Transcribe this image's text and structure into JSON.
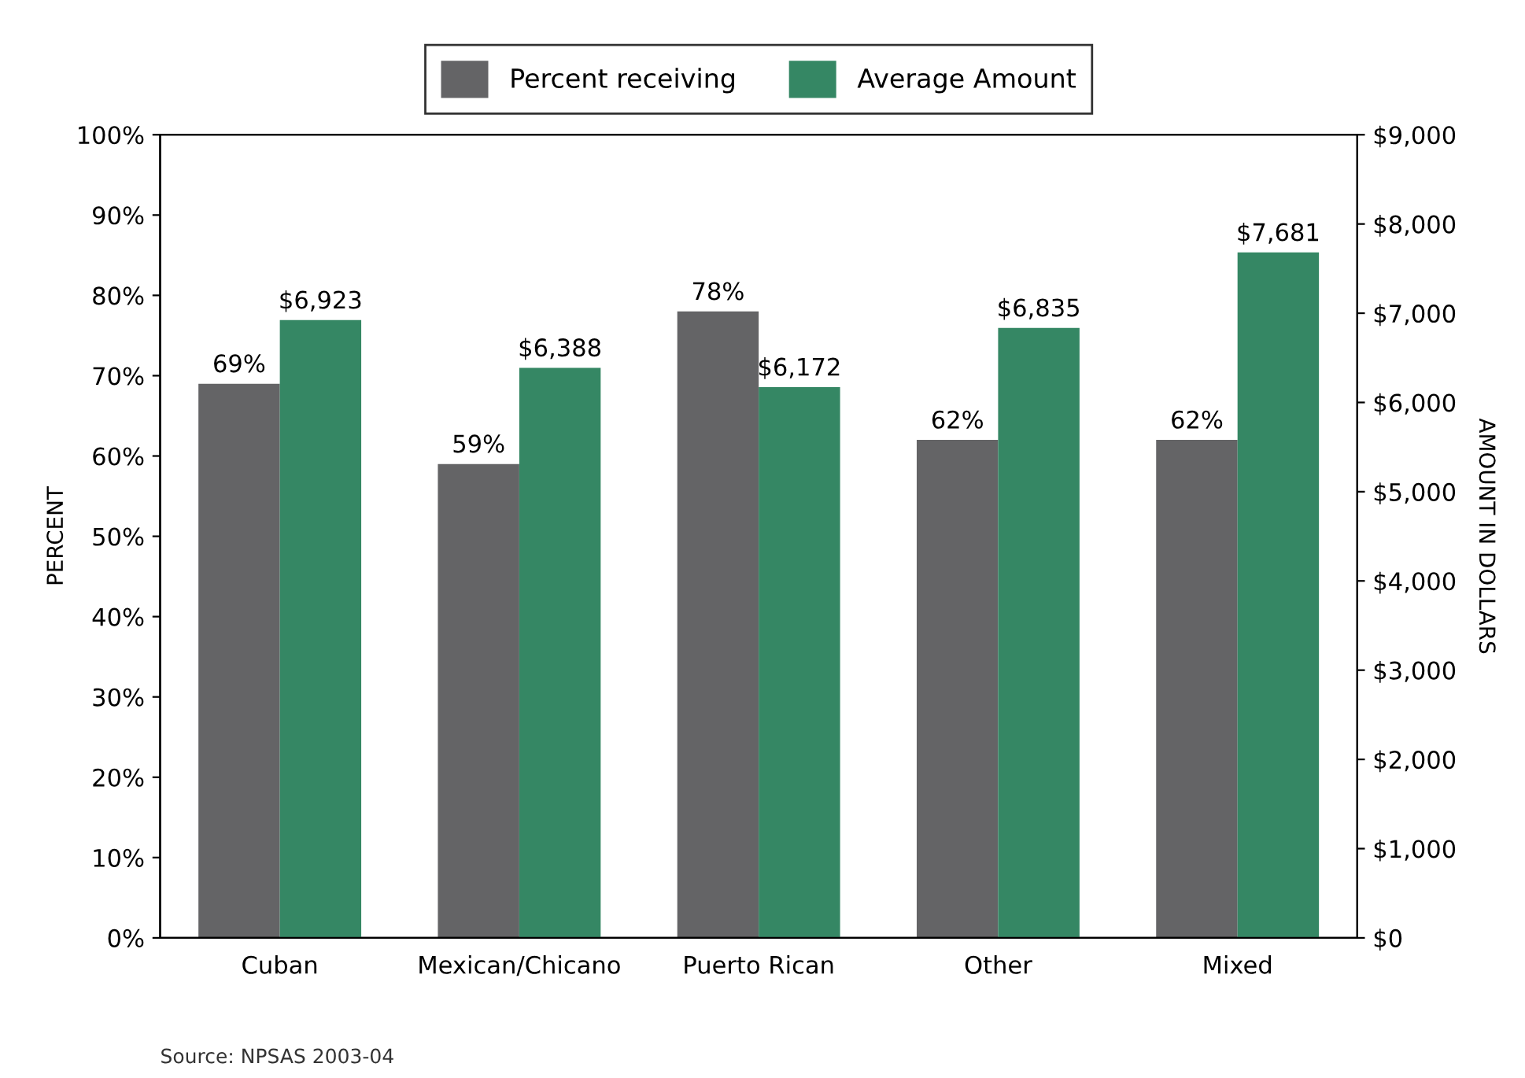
{
  "chart_data": {
    "type": "bar",
    "categories": [
      "Cuban",
      "Mexican/Chicano",
      "Puerto Rican",
      "Other",
      "Mixed"
    ],
    "series": [
      {
        "name": "Percent receiving",
        "color": "#646466",
        "values": [
          69,
          59,
          78,
          62,
          62
        ],
        "value_labels": [
          "69%",
          "59%",
          "78%",
          "62%",
          "62%"
        ]
      },
      {
        "name": "Average Amount",
        "color": "#358764",
        "axis": "y2",
        "values": [
          6923,
          6388,
          6172,
          6835,
          7681
        ],
        "value_labels": [
          "$6,923",
          "$6,388",
          "$6,172",
          "$6,835",
          "$7,681"
        ]
      }
    ],
    "ylabel": "PERCENT",
    "y2label": "AMOUNT IN DOLLARS",
    "ylim": [
      0,
      100
    ],
    "yticks": [
      {
        "value": 0,
        "label": "0%"
      },
      {
        "value": 10,
        "label": "10%"
      },
      {
        "value": 20,
        "label": "20%"
      },
      {
        "value": 30,
        "label": "30%"
      },
      {
        "value": 40,
        "label": "40%"
      },
      {
        "value": 50,
        "label": "50%"
      },
      {
        "value": 60,
        "label": "60%"
      },
      {
        "value": 70,
        "label": "70%"
      },
      {
        "value": 80,
        "label": "80%"
      },
      {
        "value": 90,
        "label": "90%"
      },
      {
        "value": 100,
        "label": "100%"
      }
    ],
    "y2lim": [
      0,
      9000
    ],
    "y2ticks": [
      {
        "value": 0,
        "label": "$0"
      },
      {
        "value": 1000,
        "label": "$1,000"
      },
      {
        "value": 2000,
        "label": "$2,000"
      },
      {
        "value": 3000,
        "label": "$3,000"
      },
      {
        "value": 4000,
        "label": "$4,000"
      },
      {
        "value": 5000,
        "label": "$5,000"
      },
      {
        "value": 6000,
        "label": "$6,000"
      },
      {
        "value": 7000,
        "label": "$7,000"
      },
      {
        "value": 8000,
        "label": "$8,000"
      },
      {
        "value": 9000,
        "label": "$9,000"
      }
    ],
    "legend": "top",
    "grid": false,
    "annotations": [
      "Source: NPSAS 2003-04"
    ]
  }
}
